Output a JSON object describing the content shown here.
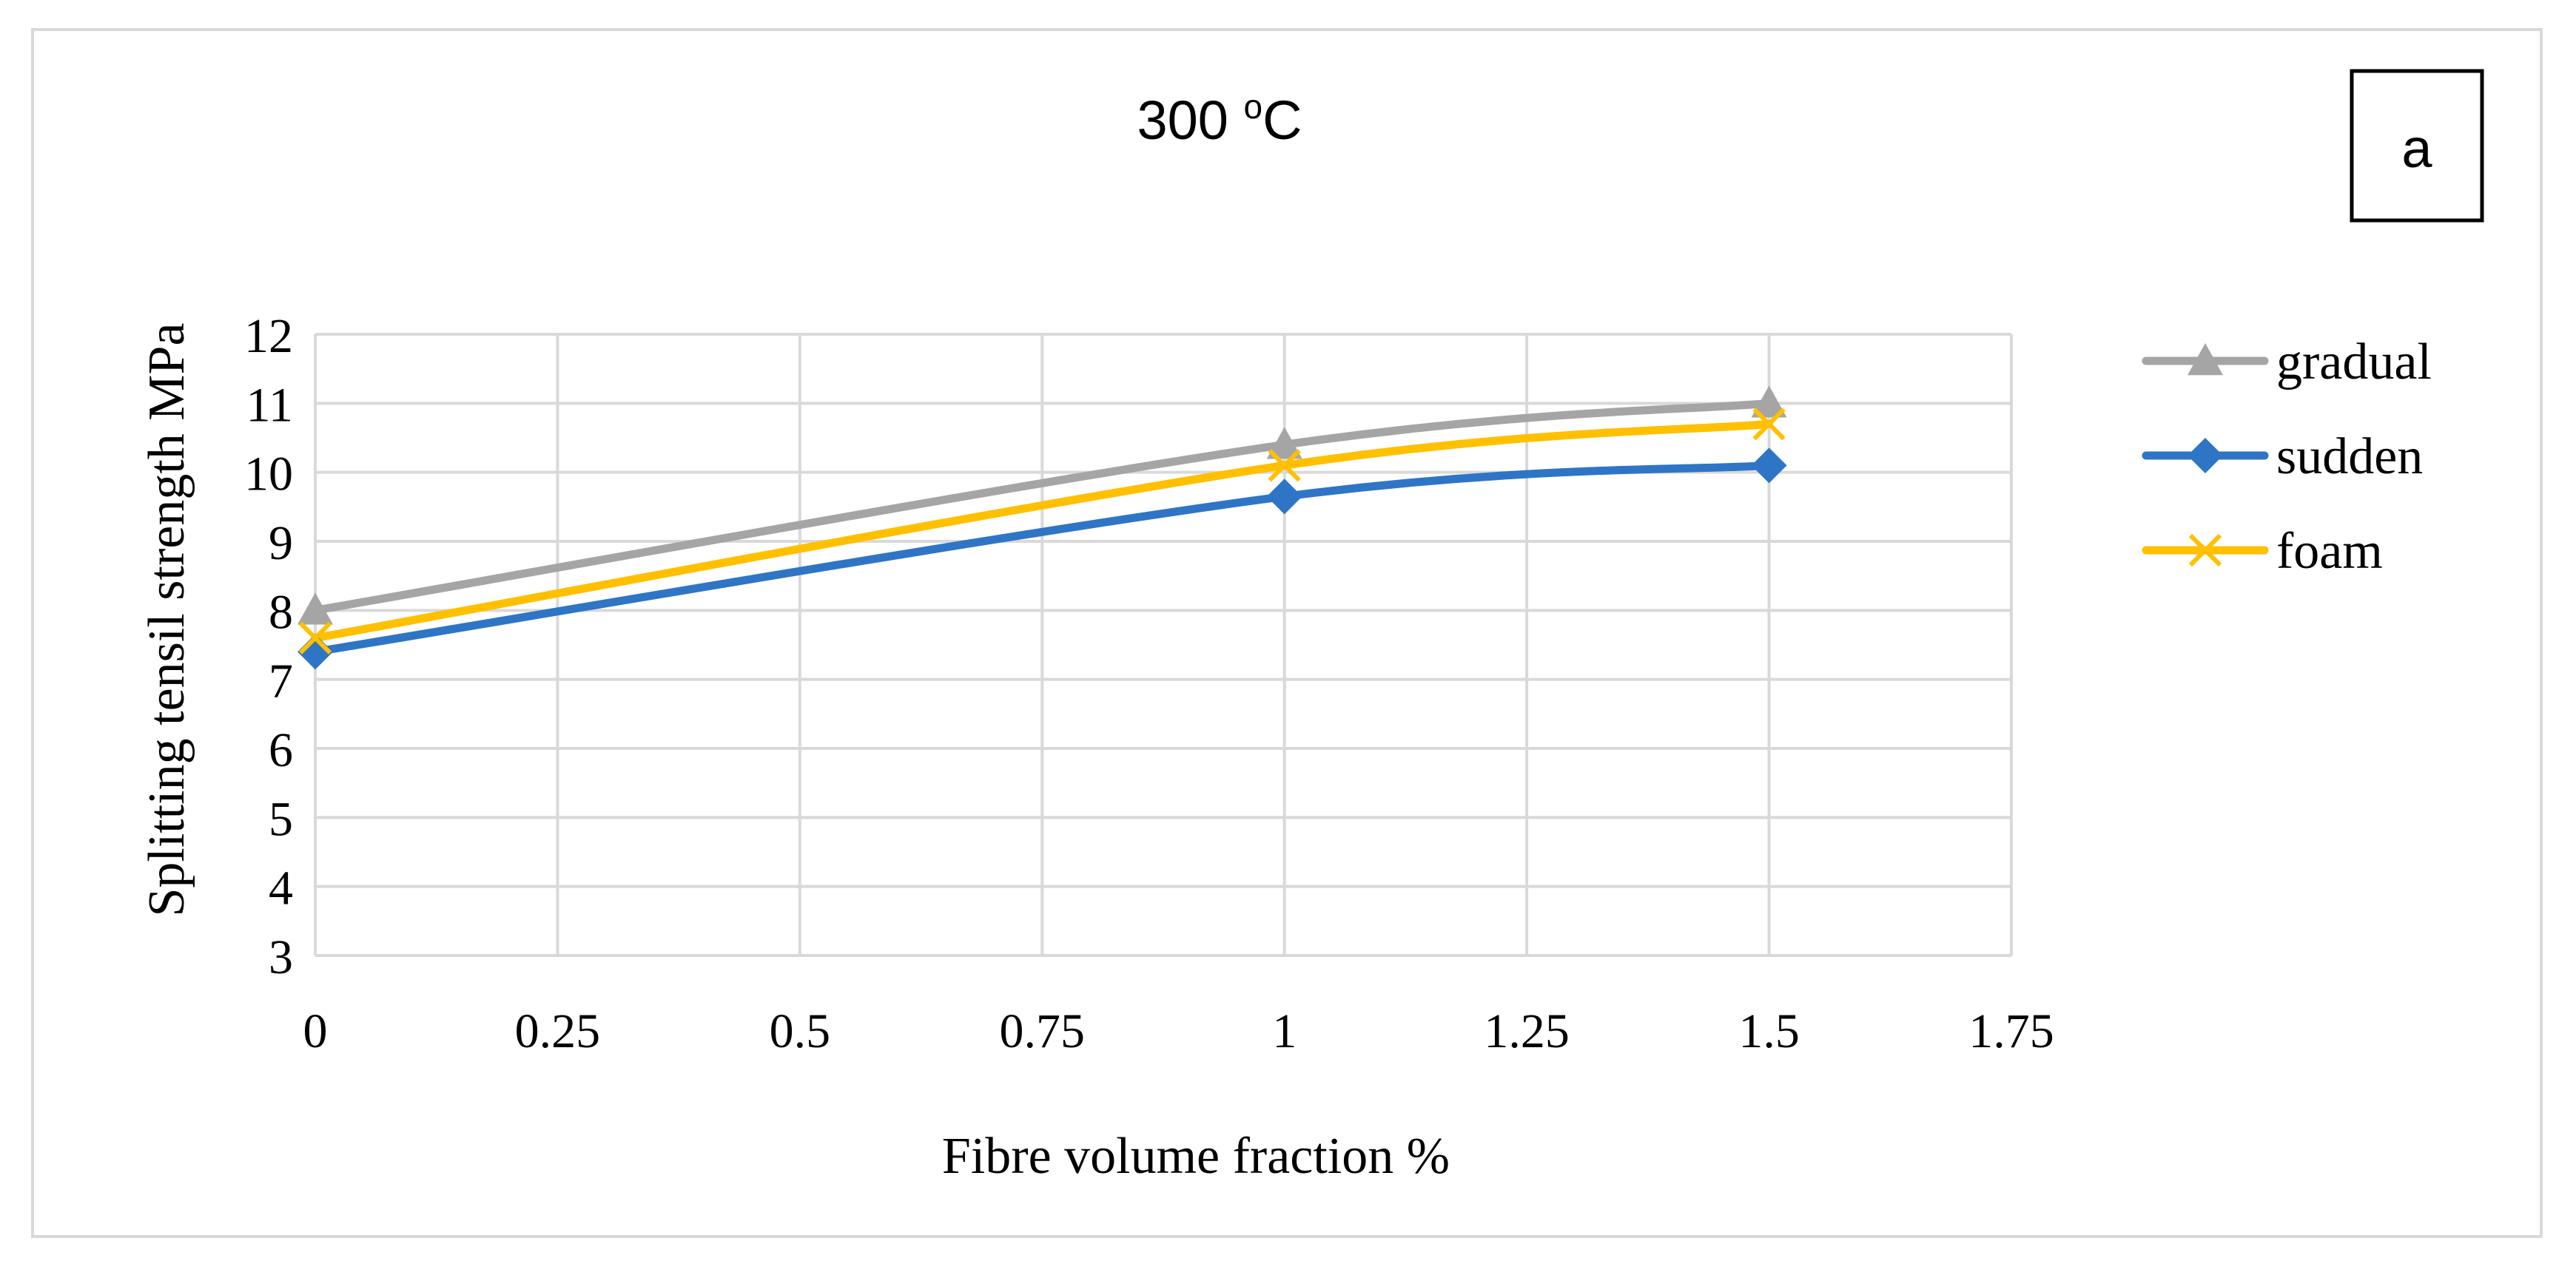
{
  "chart_data": {
    "type": "line",
    "title": "300 ",
    "title_sup": "o",
    "title_unit": "C",
    "panel_label": "a",
    "xlabel": "Fibre volume fraction %",
    "ylabel": "Splitting tensil strength MPa",
    "xlim": [
      0,
      1.75
    ],
    "ylim": [
      3,
      12
    ],
    "x_ticks": [
      0,
      0.25,
      0.5,
      0.75,
      1,
      1.25,
      1.5,
      1.75
    ],
    "x_tick_labels": [
      "0",
      "0.25",
      "0.5",
      "0.75",
      "1",
      "1.25",
      "1.5",
      "1.75"
    ],
    "y_ticks": [
      3,
      4,
      5,
      6,
      7,
      8,
      9,
      10,
      11,
      12
    ],
    "y_tick_labels": [
      "3",
      "4",
      "5",
      "6",
      "7",
      "8",
      "9",
      "10",
      "11",
      "12"
    ],
    "grid": true,
    "legend_position": "right",
    "series": [
      {
        "name": "gradual",
        "color": "#a5a5a5",
        "marker": "triangle",
        "x": [
          0,
          1,
          1.5
        ],
        "values": [
          8.0,
          10.4,
          11.0
        ]
      },
      {
        "name": "sudden",
        "color": "#2e75c6",
        "marker": "diamond",
        "x": [
          0,
          1,
          1.5
        ],
        "values": [
          7.4,
          9.65,
          10.1
        ]
      },
      {
        "name": "foam",
        "color": "#ffc000",
        "marker": "x",
        "x": [
          0,
          1,
          1.5
        ],
        "values": [
          7.6,
          10.1,
          10.7
        ]
      }
    ]
  }
}
